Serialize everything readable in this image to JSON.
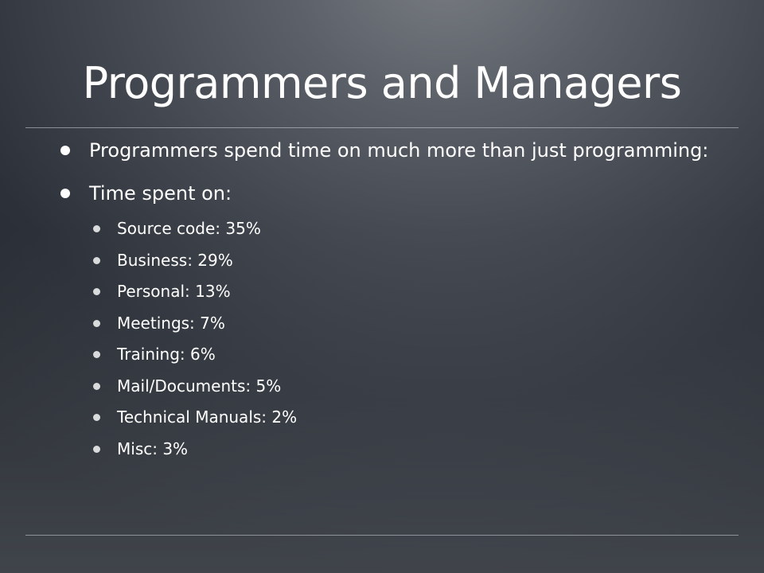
{
  "slide": {
    "title": "Programmers and Managers",
    "bullets": [
      {
        "text": "Programmers spend time on much more than just programming:"
      },
      {
        "text": "Time spent on:"
      }
    ],
    "sub_bullets": [
      "Source code: 35%",
      "Business: 29%",
      "Personal: 13%",
      "Meetings: 7%",
      "Training: 6%",
      "Mail/Documents: 5%",
      "Technical Manuals: 2%",
      "Misc: 3%"
    ]
  },
  "colors": {
    "text": "#ffffff",
    "background_dark": "#2c3038",
    "background_light": "#787c82"
  }
}
